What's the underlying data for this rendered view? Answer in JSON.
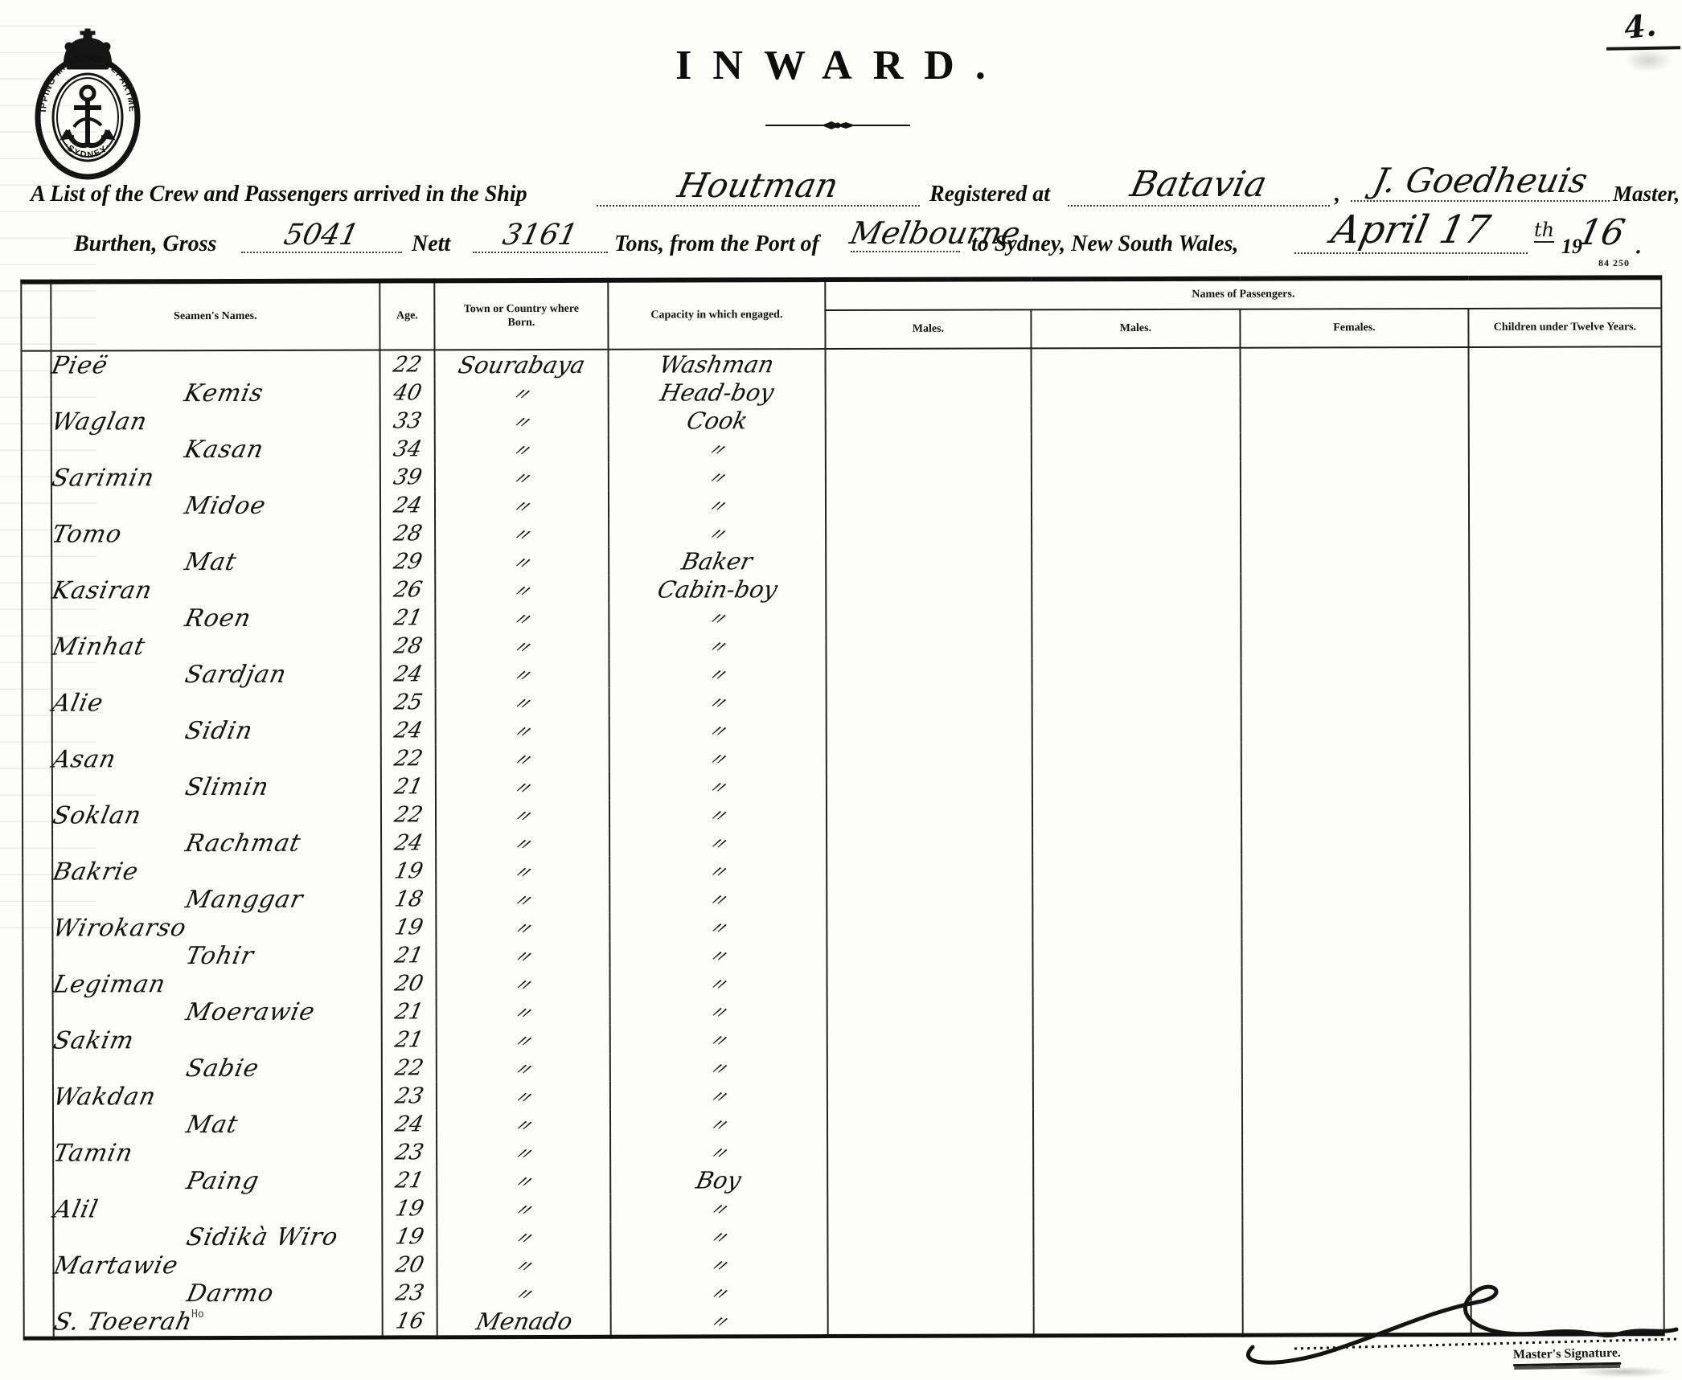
{
  "page": {
    "corner_number": "4.",
    "form_number": "84 250",
    "stray_mark": "Ho"
  },
  "seal": {
    "arc_top": "SHIPPING MASTERS DEPARTMENT",
    "arc_bottom": "·SYDNEY·"
  },
  "title": "INWARD.",
  "preamble": {
    "line1_printed_a": "A List of the Crew and Passengers arrived in the Ship",
    "ship_name": "Houtman",
    "line1_printed_b": "Registered at",
    "registry_port": "Batavia",
    "line1_printed_c": ",",
    "master_name": "J. Goedheuis",
    "line1_printed_d": "Master,",
    "line2_printed_a": "Burthen, Gross",
    "gross_tons": "5041",
    "line2_printed_b": "Nett",
    "nett_tons": "3161",
    "line2_printed_c": "Tons, from the Port of",
    "port_of_origin": "Melbourne",
    "line2_printed_d": "to Sydney, New South Wales,",
    "date_handwritten": "April 17",
    "date_suffix": "th",
    "year_printed": "19",
    "year_handwritten": "16",
    "line2_printed_e": "."
  },
  "table": {
    "ditto_mark": "〃",
    "columns": {
      "seamen_names": "Seamen's Names.",
      "age": "Age.",
      "town": "Town or Country where Born.",
      "capacity": "Capacity in which engaged.",
      "passengers_group": "Names of Passengers.",
      "passenger_cols": [
        "Males.",
        "Males.",
        "Females.",
        "Children under Twelve Years."
      ]
    },
    "rows": [
      {
        "name": "Pieë",
        "age": "22",
        "town": "Sourabaya",
        "capacity": "Washman"
      },
      {
        "name": "Kemis",
        "age": "40",
        "town": "〃",
        "capacity": "Head-boy"
      },
      {
        "name": "Waglan",
        "age": "33",
        "town": "〃",
        "capacity": "Cook"
      },
      {
        "name": "Kasan",
        "age": "34",
        "town": "〃",
        "capacity": "〃"
      },
      {
        "name": "Sarimin",
        "age": "39",
        "town": "〃",
        "capacity": "〃"
      },
      {
        "name": "Midoe",
        "age": "24",
        "town": "〃",
        "capacity": "〃"
      },
      {
        "name": "Tomo",
        "age": "28",
        "town": "〃",
        "capacity": "〃"
      },
      {
        "name": "Mat",
        "age": "29",
        "town": "〃",
        "capacity": "Baker"
      },
      {
        "name": "Kasiran",
        "age": "26",
        "town": "〃",
        "capacity": "Cabin-boy"
      },
      {
        "name": "Roen",
        "age": "21",
        "town": "〃",
        "capacity": "〃"
      },
      {
        "name": "Minhat",
        "age": "28",
        "town": "〃",
        "capacity": "〃"
      },
      {
        "name": "Sardjan",
        "age": "24",
        "town": "〃",
        "capacity": "〃"
      },
      {
        "name": "Alie",
        "age": "25",
        "town": "〃",
        "capacity": "〃"
      },
      {
        "name": "Sidin",
        "age": "24",
        "town": "〃",
        "capacity": "〃"
      },
      {
        "name": "Asan",
        "age": "22",
        "town": "〃",
        "capacity": "〃"
      },
      {
        "name": "Slimin",
        "age": "21",
        "town": "〃",
        "capacity": "〃"
      },
      {
        "name": "Soklan",
        "age": "22",
        "town": "〃",
        "capacity": "〃"
      },
      {
        "name": "Rachmat",
        "age": "24",
        "town": "〃",
        "capacity": "〃"
      },
      {
        "name": "Bakrie",
        "age": "19",
        "town": "〃",
        "capacity": "〃"
      },
      {
        "name": "Manggar",
        "age": "18",
        "town": "〃",
        "capacity": "〃"
      },
      {
        "name": "Wirokarso",
        "age": "19",
        "town": "〃",
        "capacity": "〃"
      },
      {
        "name": "Tohir",
        "age": "21",
        "town": "〃",
        "capacity": "〃"
      },
      {
        "name": "Legiman",
        "age": "20",
        "town": "〃",
        "capacity": "〃"
      },
      {
        "name": "Moerawie",
        "age": "21",
        "town": "〃",
        "capacity": "〃"
      },
      {
        "name": "Sakim",
        "age": "21",
        "town": "〃",
        "capacity": "〃"
      },
      {
        "name": "Sabie",
        "age": "22",
        "town": "〃",
        "capacity": "〃"
      },
      {
        "name": "Wakdan",
        "age": "23",
        "town": "〃",
        "capacity": "〃"
      },
      {
        "name": "Mat",
        "age": "24",
        "town": "〃",
        "capacity": "〃"
      },
      {
        "name": "Tamin",
        "age": "23",
        "town": "〃",
        "capacity": "〃"
      },
      {
        "name": "Paing",
        "age": "21",
        "town": "〃",
        "capacity": "Boy"
      },
      {
        "name": "Alil",
        "age": "19",
        "town": "〃",
        "capacity": "〃"
      },
      {
        "name": "Sidikà Wiro",
        "age": "19",
        "town": "〃",
        "capacity": "〃"
      },
      {
        "name": "Martawie",
        "age": "20",
        "town": "〃",
        "capacity": "〃"
      },
      {
        "name": "Darmo",
        "age": "23",
        "town": "〃",
        "capacity": "〃"
      },
      {
        "name": "S. Toeerah",
        "age": "16",
        "town": "Menado",
        "capacity": "〃"
      }
    ]
  },
  "footer": {
    "master_signature_label": "Master's Signature."
  }
}
